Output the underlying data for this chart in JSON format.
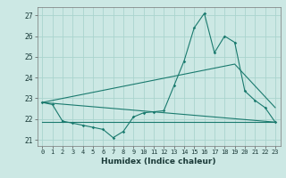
{
  "xlabel": "Humidex (Indice chaleur)",
  "bg_color": "#cce8e4",
  "grid_color": "#aad4ce",
  "line_color": "#1a7a6e",
  "xlim": [
    -0.5,
    23.5
  ],
  "ylim": [
    20.7,
    27.4
  ],
  "xticks": [
    0,
    1,
    2,
    3,
    4,
    5,
    6,
    7,
    8,
    9,
    10,
    11,
    12,
    13,
    14,
    15,
    16,
    17,
    18,
    19,
    20,
    21,
    22,
    23
  ],
  "yticks": [
    21,
    22,
    23,
    24,
    25,
    26,
    27
  ],
  "line1_x": [
    0,
    1,
    2,
    3,
    4,
    5,
    6,
    7,
    8,
    9,
    10,
    11,
    12,
    13,
    14,
    15,
    16,
    17,
    18,
    19,
    20,
    21,
    22,
    23
  ],
  "line1_y": [
    22.8,
    22.7,
    21.9,
    21.8,
    21.7,
    21.6,
    21.5,
    21.1,
    21.4,
    22.1,
    22.3,
    22.35,
    22.4,
    23.6,
    24.8,
    26.4,
    27.1,
    25.2,
    26.0,
    25.7,
    23.35,
    22.9,
    22.55,
    21.85
  ],
  "line2_x": [
    0,
    23
  ],
  "line2_y": [
    22.8,
    21.85
  ],
  "line3_x": [
    0,
    19,
    23
  ],
  "line3_y": [
    22.8,
    24.65,
    22.55
  ],
  "line4_x": [
    0,
    23
  ],
  "line4_y": [
    21.85,
    21.85
  ]
}
